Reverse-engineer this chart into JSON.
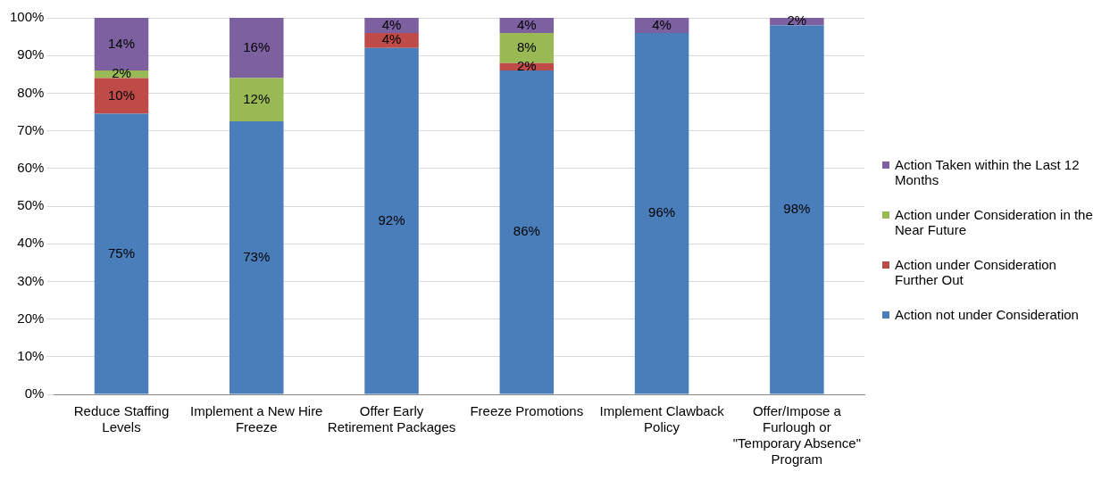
{
  "chart_data": {
    "type": "bar",
    "stacked": true,
    "categories": [
      "Reduce Staffing Levels",
      "Implement a New Hire Freeze",
      "Offer Early Retirement Packages",
      "Freeze Promotions",
      "Implement Clawback Policy",
      "Offer/Impose a Furlough or \"Temporary Absence\" Program"
    ],
    "series": [
      {
        "name": "Action not under Consideration",
        "color": "#4a7ebb",
        "values": [
          74.5,
          72.5,
          92,
          86,
          96,
          98
        ],
        "value_labels": [
          "75%",
          "73%",
          "92%",
          "86%",
          "96%",
          "98%"
        ]
      },
      {
        "name": "Action under Consideration Further Out",
        "color": "#be4b48",
        "values": [
          9.5,
          0,
          4,
          2,
          0,
          0
        ],
        "value_labels": [
          "10%",
          null,
          "4%",
          "2%",
          null,
          null
        ]
      },
      {
        "name": "Action under Consideration in the Near Future",
        "color": "#98b954",
        "values": [
          2,
          11.5,
          0,
          8,
          0,
          0
        ],
        "value_labels": [
          "2%",
          "12%",
          null,
          "8%",
          null,
          null
        ]
      },
      {
        "name": "Action Taken within the Last 12 Months",
        "color": "#7d60a0",
        "values": [
          14,
          16,
          4,
          4,
          4,
          2
        ],
        "value_labels": [
          "14%",
          "16%",
          "4%",
          "4%",
          "4%",
          "2%"
        ]
      }
    ],
    "ylim": [
      0,
      100
    ],
    "yticks": [
      {
        "value": 0,
        "label": "0%"
      },
      {
        "value": 10,
        "label": "10%"
      },
      {
        "value": 20,
        "label": "20%"
      },
      {
        "value": 30,
        "label": "30%"
      },
      {
        "value": 40,
        "label": "40%"
      },
      {
        "value": 50,
        "label": "50%"
      },
      {
        "value": 60,
        "label": "60%"
      },
      {
        "value": 70,
        "label": "70%"
      },
      {
        "value": 80,
        "label": "80%"
      },
      {
        "value": 90,
        "label": "90%"
      },
      {
        "value": 100,
        "label": "100%"
      }
    ],
    "grid": "y",
    "legend": "right"
  }
}
